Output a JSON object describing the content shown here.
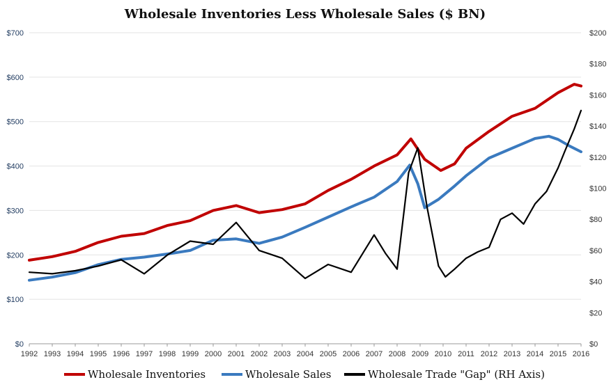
{
  "chart_data": {
    "type": "line",
    "title": "Wholesale Inventories Less Wholesale Sales ($ BN)",
    "x_ticks": [
      "1992",
      "1993",
      "1994",
      "1995",
      "1996",
      "1997",
      "1998",
      "1999",
      "2000",
      "2001",
      "2002",
      "2003",
      "2004",
      "2005",
      "2006",
      "2007",
      "2008",
      "2009",
      "2010",
      "2011",
      "2012",
      "2013",
      "2014",
      "2015",
      "2016"
    ],
    "left_axis": {
      "min": 0,
      "max": 700,
      "ticks": [
        "$0",
        "$100",
        "$200",
        "$300",
        "$400",
        "$500",
        "$600",
        "$700"
      ]
    },
    "right_axis": {
      "min": 0,
      "max": 200,
      "ticks": [
        "$0",
        "$20",
        "$40",
        "$60",
        "$80",
        "$100",
        "$120",
        "$140",
        "$160",
        "$180",
        "$200"
      ]
    },
    "grid": true,
    "legend_position": "bottom",
    "series": [
      {
        "name": "Wholesale Inventories",
        "axis": "left",
        "color": "#c00000",
        "points": [
          [
            1992,
            188
          ],
          [
            1993,
            196
          ],
          [
            1994,
            208
          ],
          [
            1995,
            228
          ],
          [
            1996,
            242
          ],
          [
            1997,
            248
          ],
          [
            1998,
            266
          ],
          [
            1999,
            277
          ],
          [
            2000,
            300
          ],
          [
            2001,
            311
          ],
          [
            2002,
            295
          ],
          [
            2003,
            302
          ],
          [
            2004,
            315
          ],
          [
            2005,
            345
          ],
          [
            2006,
            370
          ],
          [
            2007,
            400
          ],
          [
            2008,
            425
          ],
          [
            2008.6,
            461
          ],
          [
            2009.2,
            415
          ],
          [
            2009.9,
            390
          ],
          [
            2010.5,
            405
          ],
          [
            2011,
            440
          ],
          [
            2012,
            478
          ],
          [
            2013,
            512
          ],
          [
            2014,
            530
          ],
          [
            2015,
            565
          ],
          [
            2015.7,
            584
          ],
          [
            2016,
            580
          ]
        ]
      },
      {
        "name": "Wholesale Sales",
        "axis": "left",
        "color": "#3a7abf",
        "points": [
          [
            1992,
            143
          ],
          [
            1993,
            150
          ],
          [
            1994,
            160
          ],
          [
            1995,
            178
          ],
          [
            1996,
            190
          ],
          [
            1997,
            195
          ],
          [
            1998,
            202
          ],
          [
            1999,
            210
          ],
          [
            2000,
            233
          ],
          [
            2001,
            236
          ],
          [
            2002,
            226
          ],
          [
            2003,
            240
          ],
          [
            2004,
            262
          ],
          [
            2005,
            285
          ],
          [
            2006,
            308
          ],
          [
            2007,
            330
          ],
          [
            2008,
            365
          ],
          [
            2008.55,
            402
          ],
          [
            2008.9,
            360
          ],
          [
            2009.2,
            306
          ],
          [
            2009.8,
            325
          ],
          [
            2010.5,
            355
          ],
          [
            2011,
            378
          ],
          [
            2012,
            418
          ],
          [
            2013,
            440
          ],
          [
            2014,
            462
          ],
          [
            2014.6,
            467
          ],
          [
            2015,
            460
          ],
          [
            2015.5,
            445
          ],
          [
            2016,
            432
          ]
        ]
      },
      {
        "name": "Wholesale Trade \"Gap\" (RH Axis)",
        "axis": "right",
        "color": "#000000",
        "points": [
          [
            1992,
            46
          ],
          [
            1993,
            45
          ],
          [
            1994,
            47
          ],
          [
            1995,
            50
          ],
          [
            1996,
            54
          ],
          [
            1997,
            45
          ],
          [
            1998,
            57
          ],
          [
            1999,
            66
          ],
          [
            2000,
            64
          ],
          [
            2001,
            78
          ],
          [
            2002,
            60
          ],
          [
            2003,
            55
          ],
          [
            2004,
            42
          ],
          [
            2005,
            51
          ],
          [
            2006,
            46
          ],
          [
            2007,
            70
          ],
          [
            2007.5,
            58
          ],
          [
            2008,
            48
          ],
          [
            2008.5,
            110
          ],
          [
            2008.9,
            126
          ],
          [
            2009.3,
            88
          ],
          [
            2009.8,
            50
          ],
          [
            2010.1,
            43
          ],
          [
            2010.5,
            48
          ],
          [
            2011,
            55
          ],
          [
            2011.5,
            59
          ],
          [
            2012,
            62
          ],
          [
            2012.5,
            80
          ],
          [
            2013,
            84
          ],
          [
            2013.5,
            77
          ],
          [
            2014,
            90
          ],
          [
            2014.5,
            98
          ],
          [
            2015,
            113
          ],
          [
            2015.3,
            124
          ],
          [
            2015.7,
            138
          ],
          [
            2016,
            150
          ]
        ]
      }
    ]
  }
}
